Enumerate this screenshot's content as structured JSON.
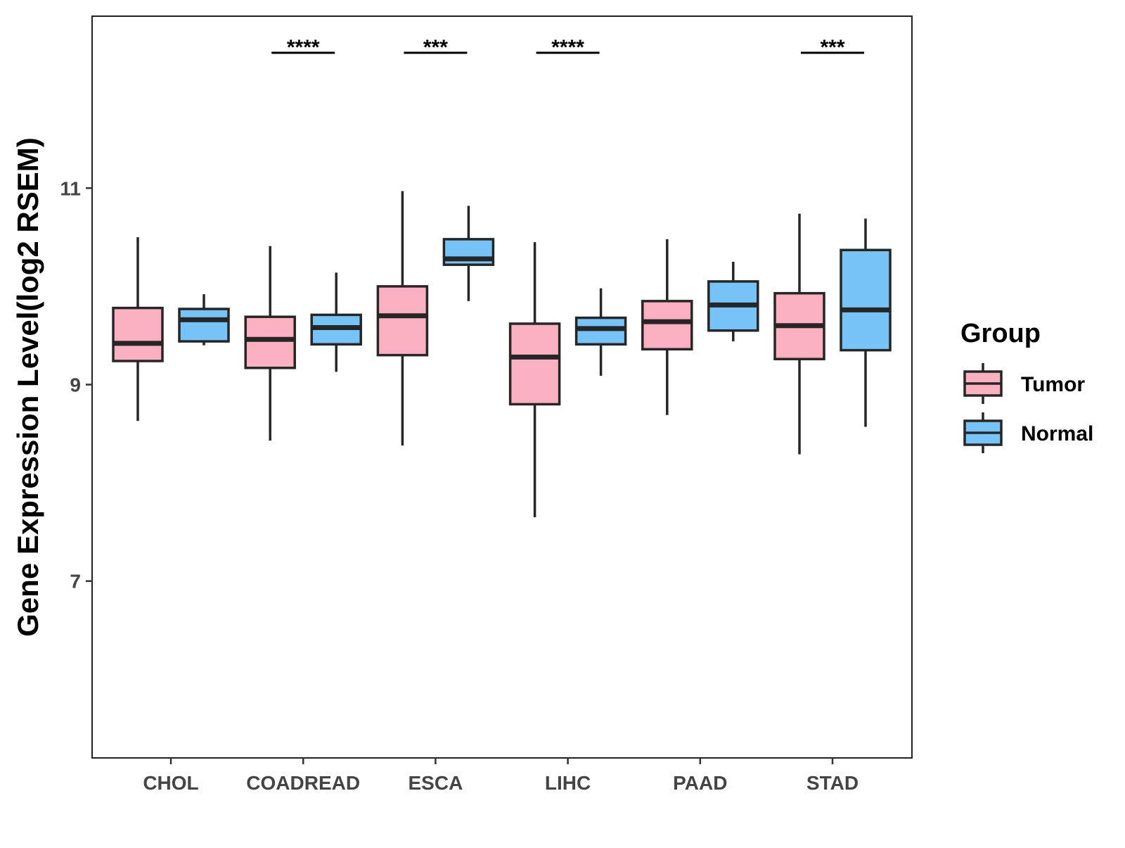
{
  "chart_data": {
    "type": "boxplot",
    "title": "",
    "xlabel": "",
    "ylabel": "Gene Expression Level(log2 RSEM)",
    "ylim": [
      5.2,
      12.75
    ],
    "yticks": [
      7,
      9,
      11
    ],
    "ytick_labels": [
      "7",
      "9",
      "11"
    ],
    "grid": false,
    "categories": [
      "CHOL",
      "COADREAD",
      "ESCA",
      "LIHC",
      "PAAD",
      "STAD"
    ],
    "series": [
      {
        "name": "Tumor",
        "color": "#FBB0C2",
        "boxes": [
          {
            "min": 8.63,
            "q1": 9.24,
            "median": 9.42,
            "q3": 9.78,
            "max": 10.5
          },
          {
            "min": 8.43,
            "q1": 9.17,
            "median": 9.46,
            "q3": 9.69,
            "max": 10.41
          },
          {
            "min": 8.38,
            "q1": 9.3,
            "median": 9.7,
            "q3": 10.0,
            "max": 10.97
          },
          {
            "min": 7.65,
            "q1": 8.8,
            "median": 9.28,
            "q3": 9.62,
            "max": 10.45
          },
          {
            "min": 8.69,
            "q1": 9.36,
            "median": 9.64,
            "q3": 9.85,
            "max": 10.48
          },
          {
            "min": 8.29,
            "q1": 9.26,
            "median": 9.6,
            "q3": 9.93,
            "max": 10.74
          }
        ]
      },
      {
        "name": "Normal",
        "color": "#76C3F8",
        "boxes": [
          {
            "min": 9.4,
            "q1": 9.44,
            "median": 9.66,
            "q3": 9.77,
            "max": 9.92
          },
          {
            "min": 9.13,
            "q1": 9.41,
            "median": 9.58,
            "q3": 9.71,
            "max": 10.14
          },
          {
            "min": 9.85,
            "q1": 10.22,
            "median": 10.28,
            "q3": 10.48,
            "max": 10.82
          },
          {
            "min": 9.09,
            "q1": 9.41,
            "median": 9.57,
            "q3": 9.68,
            "max": 9.98
          },
          {
            "min": 9.44,
            "q1": 9.55,
            "median": 9.81,
            "q3": 10.05,
            "max": 10.25
          },
          {
            "min": 8.57,
            "q1": 9.35,
            "median": 9.76,
            "q3": 10.37,
            "max": 10.69
          }
        ]
      }
    ],
    "significance": [
      {
        "category": "COADREAD",
        "label": "****"
      },
      {
        "category": "ESCA",
        "label": "***"
      },
      {
        "category": "LIHC",
        "label": "****"
      },
      {
        "category": "STAD",
        "label": "***"
      }
    ],
    "legend": {
      "title": "Group",
      "position": "right",
      "items": [
        "Tumor",
        "Normal"
      ]
    }
  }
}
